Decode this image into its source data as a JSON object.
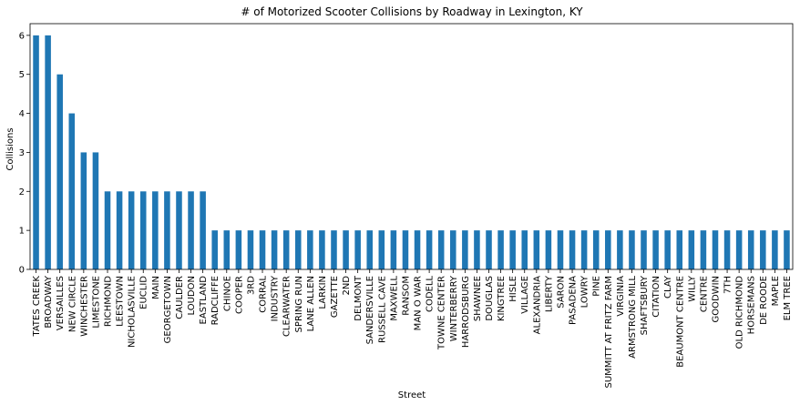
{
  "chart_data": {
    "type": "bar",
    "title": "# of Motorized Scooter Collisions by Roadway in Lexington, KY",
    "xlabel": "Street",
    "ylabel": "Collisions",
    "ylim": [
      0,
      6.3
    ],
    "yticks": [
      0,
      1,
      2,
      3,
      4,
      5,
      6
    ],
    "grid": false,
    "bar_color": "#1f77b4",
    "categories": [
      "TATES CREEK",
      "BROADWAY",
      "VERSAILLES",
      "NEW CIRCLE",
      "WINCHESTER",
      "LIMESTONE",
      "RICHMOND",
      "LEESTOWN",
      "NICHOLASVILLE",
      "EUCLID",
      "MAIN",
      "GEORGETOWN",
      "CAULDER",
      "LOUDON",
      "EASTLAND",
      "RADCLIFFE",
      "CHINOE",
      "COOPER",
      "3RD",
      "CORRAL",
      "INDUSTRY",
      "CLEARWATER",
      "SPRING RUN",
      "LANE ALLEN",
      "LARKIN",
      "GAZETTE",
      "2ND",
      "DELMONT",
      "SANDERSVILLE",
      "RUSSELL CAVE",
      "MAXWELL",
      "RANSOM",
      "MAN O WAR",
      "CODELL",
      "TOWNE CENTER",
      "WINTERBERRY",
      "HARRODSBURG",
      "SHAWNEE",
      "DOUGLAS",
      "KINGTREE",
      "HISLE",
      "VILLAGE",
      "ALEXANDRIA",
      "LIBERTY",
      "SARON",
      "PASADENA",
      "LOWRY",
      "PINE",
      "SUMMITT AT FRITZ FARM",
      "VIRGINIA",
      "ARMSTRONG MILL",
      "SHAFTSBURY",
      "CITATION",
      "CLAY",
      "BEAUMONT CENTRE",
      "WILLY",
      "CENTRE",
      "GOODWIN",
      "7TH",
      "OLD RICHMOND",
      "HORSEMANS",
      "DE ROODE",
      "MAPLE",
      "ELM TREE"
    ],
    "values": [
      6,
      6,
      5,
      4,
      3,
      3,
      2,
      2,
      2,
      2,
      2,
      2,
      2,
      2,
      2,
      1,
      1,
      1,
      1,
      1,
      1,
      1,
      1,
      1,
      1,
      1,
      1,
      1,
      1,
      1,
      1,
      1,
      1,
      1,
      1,
      1,
      1,
      1,
      1,
      1,
      1,
      1,
      1,
      1,
      1,
      1,
      1,
      1,
      1,
      1,
      1,
      1,
      1,
      1,
      1,
      1,
      1,
      1,
      1,
      1,
      1,
      1,
      1,
      1
    ]
  }
}
